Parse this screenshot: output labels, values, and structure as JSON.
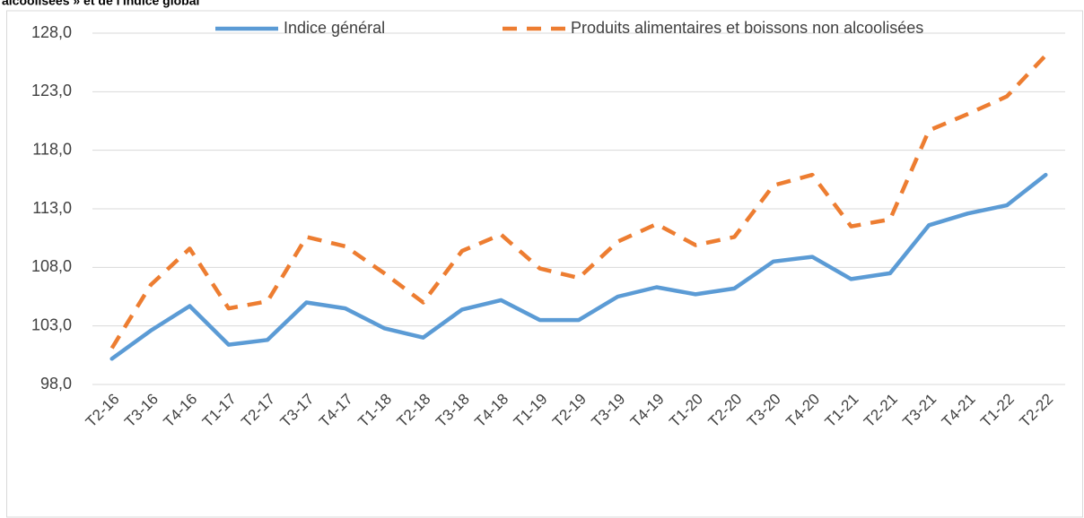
{
  "chart_data": {
    "type": "line",
    "title": "alcoolisées » et de l'indice global",
    "categories": [
      "T2-16",
      "T3-16",
      "T4-16",
      "T1-17",
      "T2-17",
      "T3-17",
      "T4-17",
      "T1-18",
      "T2-18",
      "T3-18",
      "T4-18",
      "T1-19",
      "T2-19",
      "T3-19",
      "T4-19",
      "T1-20",
      "T2-20",
      "T3-20",
      "T4-20",
      "T1-21",
      "T2-21",
      "T3-21",
      "T4-21",
      "T1-22",
      "T2-22"
    ],
    "series": [
      {
        "name": "Indice général",
        "color": "#5b9bd5",
        "dash": false,
        "values": [
          100.2,
          102.6,
          104.7,
          101.4,
          101.8,
          105.0,
          104.5,
          102.8,
          102.0,
          104.4,
          105.2,
          103.5,
          103.5,
          105.5,
          106.3,
          105.7,
          106.2,
          108.5,
          108.9,
          107.0,
          107.5,
          111.6,
          112.6,
          113.3,
          115.9
        ]
      },
      {
        "name": "Produits alimentaires et boissons non alcoolisées",
        "color": "#ed7d31",
        "dash": true,
        "values": [
          101.1,
          106.5,
          109.6,
          104.5,
          105.1,
          110.6,
          109.8,
          107.5,
          105.0,
          109.4,
          110.8,
          107.9,
          107.1,
          110.2,
          111.7,
          109.9,
          110.6,
          115.0,
          115.9,
          111.5,
          112.1,
          119.7,
          121.1,
          122.6,
          126.1
        ]
      }
    ],
    "ylim": [
      98,
      128
    ],
    "yticks": [
      {
        "value": 98,
        "label": "98,0"
      },
      {
        "value": 103,
        "label": "103,0"
      },
      {
        "value": 108,
        "label": "108,0"
      },
      {
        "value": 113,
        "label": "113,0"
      },
      {
        "value": 118,
        "label": "118,0"
      },
      {
        "value": 123,
        "label": "123,0"
      },
      {
        "value": 128,
        "label": "128,0"
      }
    ],
    "grid": true,
    "legend": "top"
  }
}
